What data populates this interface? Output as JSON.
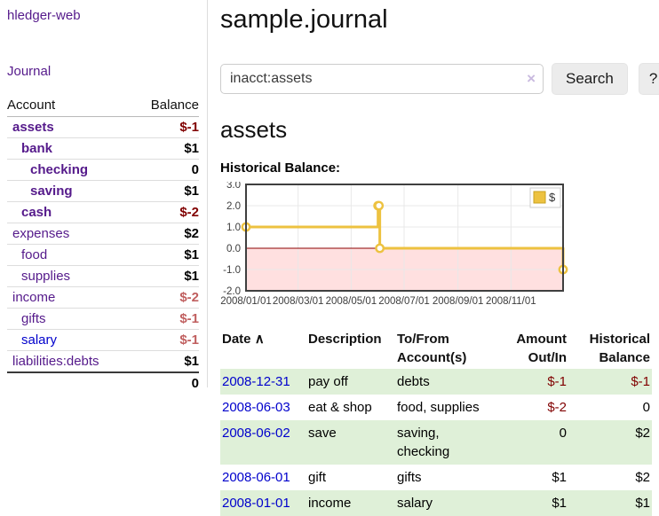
{
  "app": {
    "title": "hledger-web",
    "nav_journal": "Journal"
  },
  "colors": {
    "link-purple": "#551a8b",
    "link-blue": "#0000cc",
    "negative-strong": "#800000",
    "negative-soft": "#c05f5f",
    "row-green": "#dff0d8",
    "divider": "#dddddd",
    "button-bg": "#ececec",
    "input-border": "#cccccc",
    "clear-icon": "#c9badf"
  },
  "sidebar": {
    "headers": {
      "account": "Account",
      "balance": "Balance"
    },
    "accounts": [
      {
        "name": "assets",
        "depth": 0,
        "balance": "$-1",
        "bold": true,
        "negative": true,
        "blue": false
      },
      {
        "name": "bank",
        "depth": 1,
        "balance": "$1",
        "bold": true,
        "negative": false,
        "blue": false
      },
      {
        "name": "checking",
        "depth": 2,
        "balance": "0",
        "bold": true,
        "negative": false,
        "blue": false
      },
      {
        "name": "saving",
        "depth": 2,
        "balance": "$1",
        "bold": true,
        "negative": false,
        "blue": false
      },
      {
        "name": "cash",
        "depth": 1,
        "balance": "$-2",
        "bold": true,
        "negative": true,
        "blue": false
      },
      {
        "name": "expenses",
        "depth": 0,
        "balance": "$2",
        "bold": false,
        "negative": false,
        "blue": false
      },
      {
        "name": "food",
        "depth": 1,
        "balance": "$1",
        "bold": false,
        "negative": false,
        "blue": false
      },
      {
        "name": "supplies",
        "depth": 1,
        "balance": "$1",
        "bold": false,
        "negative": false,
        "blue": false
      },
      {
        "name": "income",
        "depth": 0,
        "balance": "$-2",
        "bold": false,
        "negative": true,
        "blue": false
      },
      {
        "name": "gifts",
        "depth": 1,
        "balance": "$-1",
        "bold": false,
        "negative": true,
        "blue": false
      },
      {
        "name": "salary",
        "depth": 1,
        "balance": "$-1",
        "bold": false,
        "negative": true,
        "blue": true
      },
      {
        "name": "liabilities:debts",
        "depth": 0,
        "balance": "$1",
        "bold": false,
        "negative": false,
        "blue": false
      }
    ],
    "total": "0"
  },
  "main": {
    "title": "sample.journal",
    "search": {
      "value": "inacct:assets",
      "clear_icon": "×",
      "button": "Search",
      "help_button": "?"
    },
    "account_heading": "assets",
    "chart_label": "Historical Balance:"
  },
  "chart_data": {
    "type": "line",
    "step": true,
    "title": "Historical Balance",
    "xlabel": "",
    "ylabel": "",
    "series": [
      {
        "name": "$",
        "color": "#edc240",
        "points": [
          [
            "2008-01-01",
            1
          ],
          [
            "2008-06-01",
            2
          ],
          [
            "2008-06-02",
            2
          ],
          [
            "2008-06-03",
            0
          ],
          [
            "2008-12-31",
            -1
          ]
        ]
      }
    ],
    "xlim": [
      "2008-01-01",
      "2008-12-31"
    ],
    "ylim": [
      -2,
      3
    ],
    "ytick_values": [
      3,
      2,
      1,
      0,
      -1,
      -2
    ],
    "ytick_labels": [
      "3.0",
      "2.0",
      "1.0",
      "0.0",
      "-1.0",
      "-2.0"
    ],
    "xticks": [
      {
        "label": "2008/01/01",
        "date": "2008-01-01"
      },
      {
        "label": "2008/03/01",
        "date": "2008-03-01"
      },
      {
        "label": "2008/05/01",
        "date": "2008-05-01"
      },
      {
        "label": "2008/07/01",
        "date": "2008-07-01"
      },
      {
        "label": "2008/09/01",
        "date": "2008-09-01"
      },
      {
        "label": "2008/11/01",
        "date": "2008-11-01"
      }
    ],
    "grid": true,
    "legend": {
      "position": "top-right",
      "entries": [
        "$"
      ]
    },
    "style": {
      "grid_color": "#e8e8e8",
      "border_color": "#3f3f3f",
      "zero_line_color": "#8b0000",
      "below_zero_fill": "rgba(255,0,0,0.12)",
      "marker_fill": "#ffffff",
      "tick_text_color": "#3c3c3c",
      "legend_border": "#cccccc",
      "swatch_border": "#c9a21f"
    }
  },
  "register": {
    "headers": {
      "date": "Date",
      "sort_icon": "∧",
      "description": "Description",
      "accounts": "To/From\nAccount(s)",
      "amount": "Amount\nOut/In",
      "balance": "Historical\nBalance"
    },
    "rows": [
      {
        "date": "2008-12-31",
        "description": "pay off",
        "accounts": "debts",
        "amount": "$-1",
        "amount_negative": true,
        "balance": "$-1",
        "balance_negative": true
      },
      {
        "date": "2008-06-03",
        "description": "eat & shop",
        "accounts": "food, supplies",
        "amount": "$-2",
        "amount_negative": true,
        "balance": "0",
        "balance_negative": false
      },
      {
        "date": "2008-06-02",
        "description": "save",
        "accounts": "saving,\nchecking",
        "amount": "0",
        "amount_negative": false,
        "balance": "$2",
        "balance_negative": false
      },
      {
        "date": "2008-06-01",
        "description": "gift",
        "accounts": "gifts",
        "amount": "$1",
        "amount_negative": false,
        "balance": "$2",
        "balance_negative": false
      },
      {
        "date": "2008-01-01",
        "description": "income",
        "accounts": "salary",
        "amount": "$1",
        "amount_negative": false,
        "balance": "$1",
        "balance_negative": false
      }
    ]
  }
}
